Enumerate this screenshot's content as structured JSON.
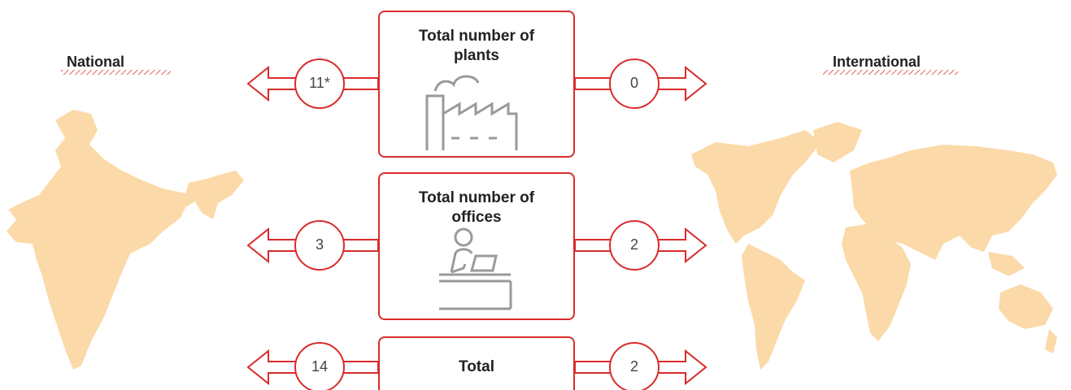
{
  "national_label": "National",
  "international_label": "International",
  "rows": [
    {
      "title": "Total number of plants",
      "national": "11*",
      "international": 0
    },
    {
      "title": "Total number of offices",
      "national": 3,
      "international": 2
    },
    {
      "title": "Total",
      "national": 14,
      "international": 2
    }
  ]
}
